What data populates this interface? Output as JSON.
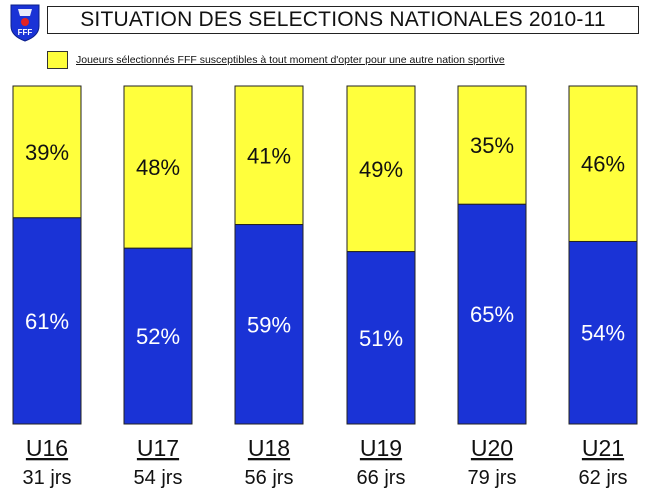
{
  "header": {
    "logo_text": "FFF"
  },
  "colors": {
    "yellow": "#ffff3c",
    "blue": "#1a33d6",
    "border": "#222222"
  },
  "chart_data": {
    "type": "bar",
    "stacked": true,
    "title": "SITUATION DES SELECTIONS NATIONALES 2010-11",
    "legend": [
      "Joueurs sélectionnés FFF susceptibles à tout moment d'opter pour une autre nation sportive"
    ],
    "categories": [
      "U16",
      "U17",
      "U18",
      "U19",
      "U20",
      "U21"
    ],
    "counts": [
      "31 jrs",
      "54 jrs",
      "56 jrs",
      "66 jrs",
      "79 jrs",
      "62 jrs"
    ],
    "series": [
      {
        "values": [
          61,
          52,
          59,
          51,
          65,
          54
        ],
        "labels": [
          "61%",
          "52%",
          "59%",
          "51%",
          "65%",
          "54%"
        ],
        "color": "#1a33d6"
      },
      {
        "name": "Joueurs sélectionnés FFF susceptibles à tout moment d'opter pour une autre nation sportive",
        "values": [
          39,
          48,
          41,
          49,
          35,
          46
        ],
        "labels": [
          "39%",
          "48%",
          "41%",
          "49%",
          "35%",
          "46%"
        ],
        "color": "#ffff3c"
      }
    ],
    "ylim": [
      0,
      100
    ]
  }
}
